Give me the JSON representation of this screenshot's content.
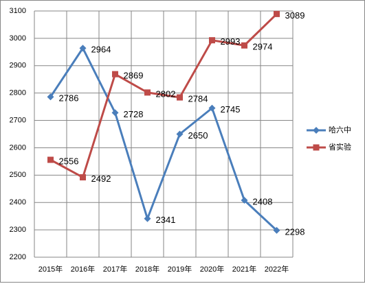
{
  "chart_data": {
    "type": "line",
    "categories": [
      "2015年",
      "2016年",
      "2017年",
      "2018年",
      "2019年",
      "2020年",
      "2021年",
      "2022年"
    ],
    "series": [
      {
        "name": "哈六中",
        "color": "#4a7ebb",
        "marker": "diamond",
        "values": [
          2786,
          2964,
          2728,
          2341,
          2650,
          2745,
          2408,
          2298
        ]
      },
      {
        "name": "省实验",
        "color": "#be4b48",
        "marker": "square",
        "values": [
          2556,
          2492,
          2869,
          2802,
          2784,
          2993,
          2974,
          3089
        ]
      }
    ],
    "ylim": [
      2200,
      3100
    ],
    "yticks": [
      2200,
      2300,
      2400,
      2500,
      2600,
      2700,
      2800,
      2900,
      3000,
      3100
    ],
    "grid": true,
    "legend": "right"
  }
}
